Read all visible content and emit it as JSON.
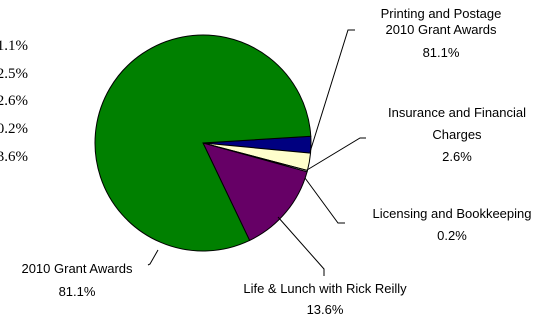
{
  "chart_data": {
    "type": "pie",
    "title": "",
    "slices": [
      {
        "label": "2010 Grant Awards",
        "value": 81.1,
        "value_label": "81.1%",
        "color": "#008000"
      },
      {
        "label": "Printing and Postage",
        "value": 2.5,
        "value_label": "2.5%",
        "color": "#000080"
      },
      {
        "label": "Insurance and Financial Charges",
        "value": 2.6,
        "value_label": "2.6%",
        "color": "#ffffcc"
      },
      {
        "label": "Licensing and Bookkeeping",
        "value": 0.2,
        "value_label": "0.2%",
        "color": "#ffffff"
      },
      {
        "label": "Life & Lunch with Rick Reilly",
        "value": 13.6,
        "value_label": "13.6%",
        "color": "#660066"
      }
    ],
    "callouts": {
      "printing_line1": "Printing and Postage",
      "printing_line2": "2010 Grant Awards",
      "printing_line3": "81.1%",
      "insurance_line1": "Insurance and Financial",
      "insurance_line2": "Charges",
      "insurance_line3": "2.6%",
      "licensing_line1": "Licensing and Bookkeeping",
      "licensing_line2": "0.2%",
      "lunch_line1": "Life & Lunch with Rick Reilly",
      "lunch_line2": "13.6%",
      "grant_line1": "2010 Grant Awards",
      "grant_line2": "81.1%"
    },
    "cut_off_left_values": [
      "1.1%",
      "2.5%",
      "2.6%",
      "0.2%",
      "3.6%"
    ]
  }
}
